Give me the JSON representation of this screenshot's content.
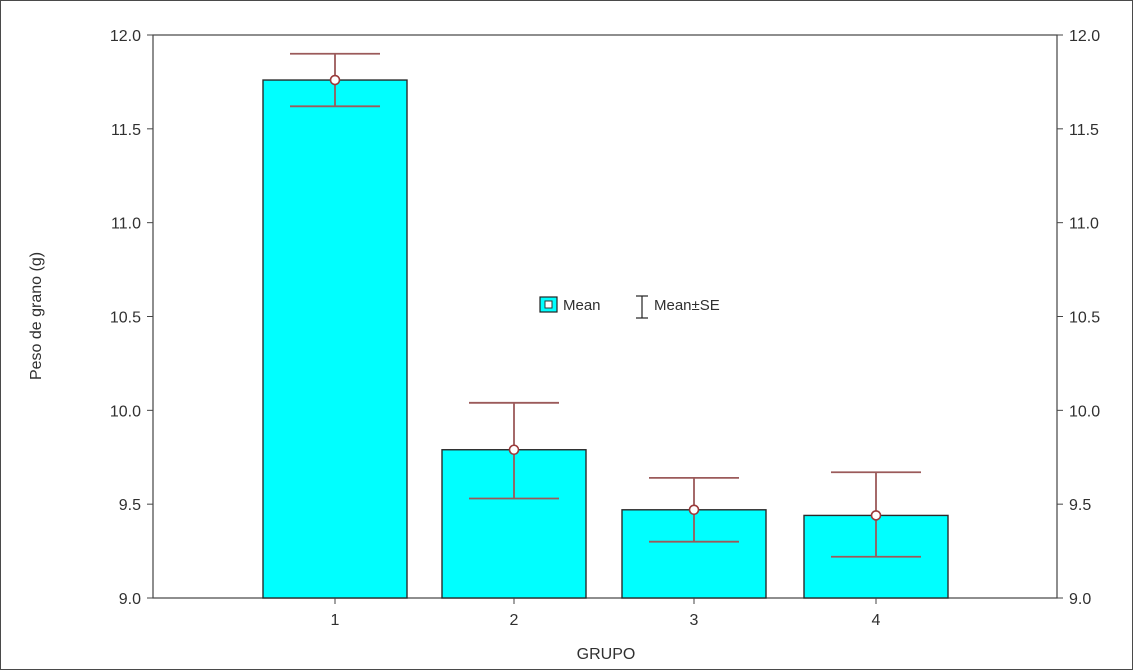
{
  "chart_data": {
    "type": "bar",
    "xlabel": "GRUPO",
    "ylabel": "Peso de grano (g)",
    "categories": [
      "1",
      "2",
      "3",
      "4"
    ],
    "series": [
      {
        "values": [
          11.76,
          9.79,
          9.47,
          9.44
        ],
        "se_lower": [
          11.62,
          9.53,
          9.3,
          9.22
        ],
        "se_upper": [
          11.9,
          10.04,
          9.64,
          9.67
        ]
      }
    ],
    "ylim": [
      9.0,
      12.0
    ],
    "yticks": [
      "9.0",
      "9.5",
      "10.0",
      "10.5",
      "11.0",
      "11.5",
      "12.0"
    ],
    "grid": false,
    "legend": {
      "placement": "center",
      "entries": [
        "Mean",
        "Mean±SE"
      ]
    },
    "colors": {
      "bar_fill": "#00ffff",
      "bar_stroke": "#2a2a2a",
      "error_bar": "#9b5a5a",
      "marker_stroke": "#9b3a3a"
    }
  }
}
